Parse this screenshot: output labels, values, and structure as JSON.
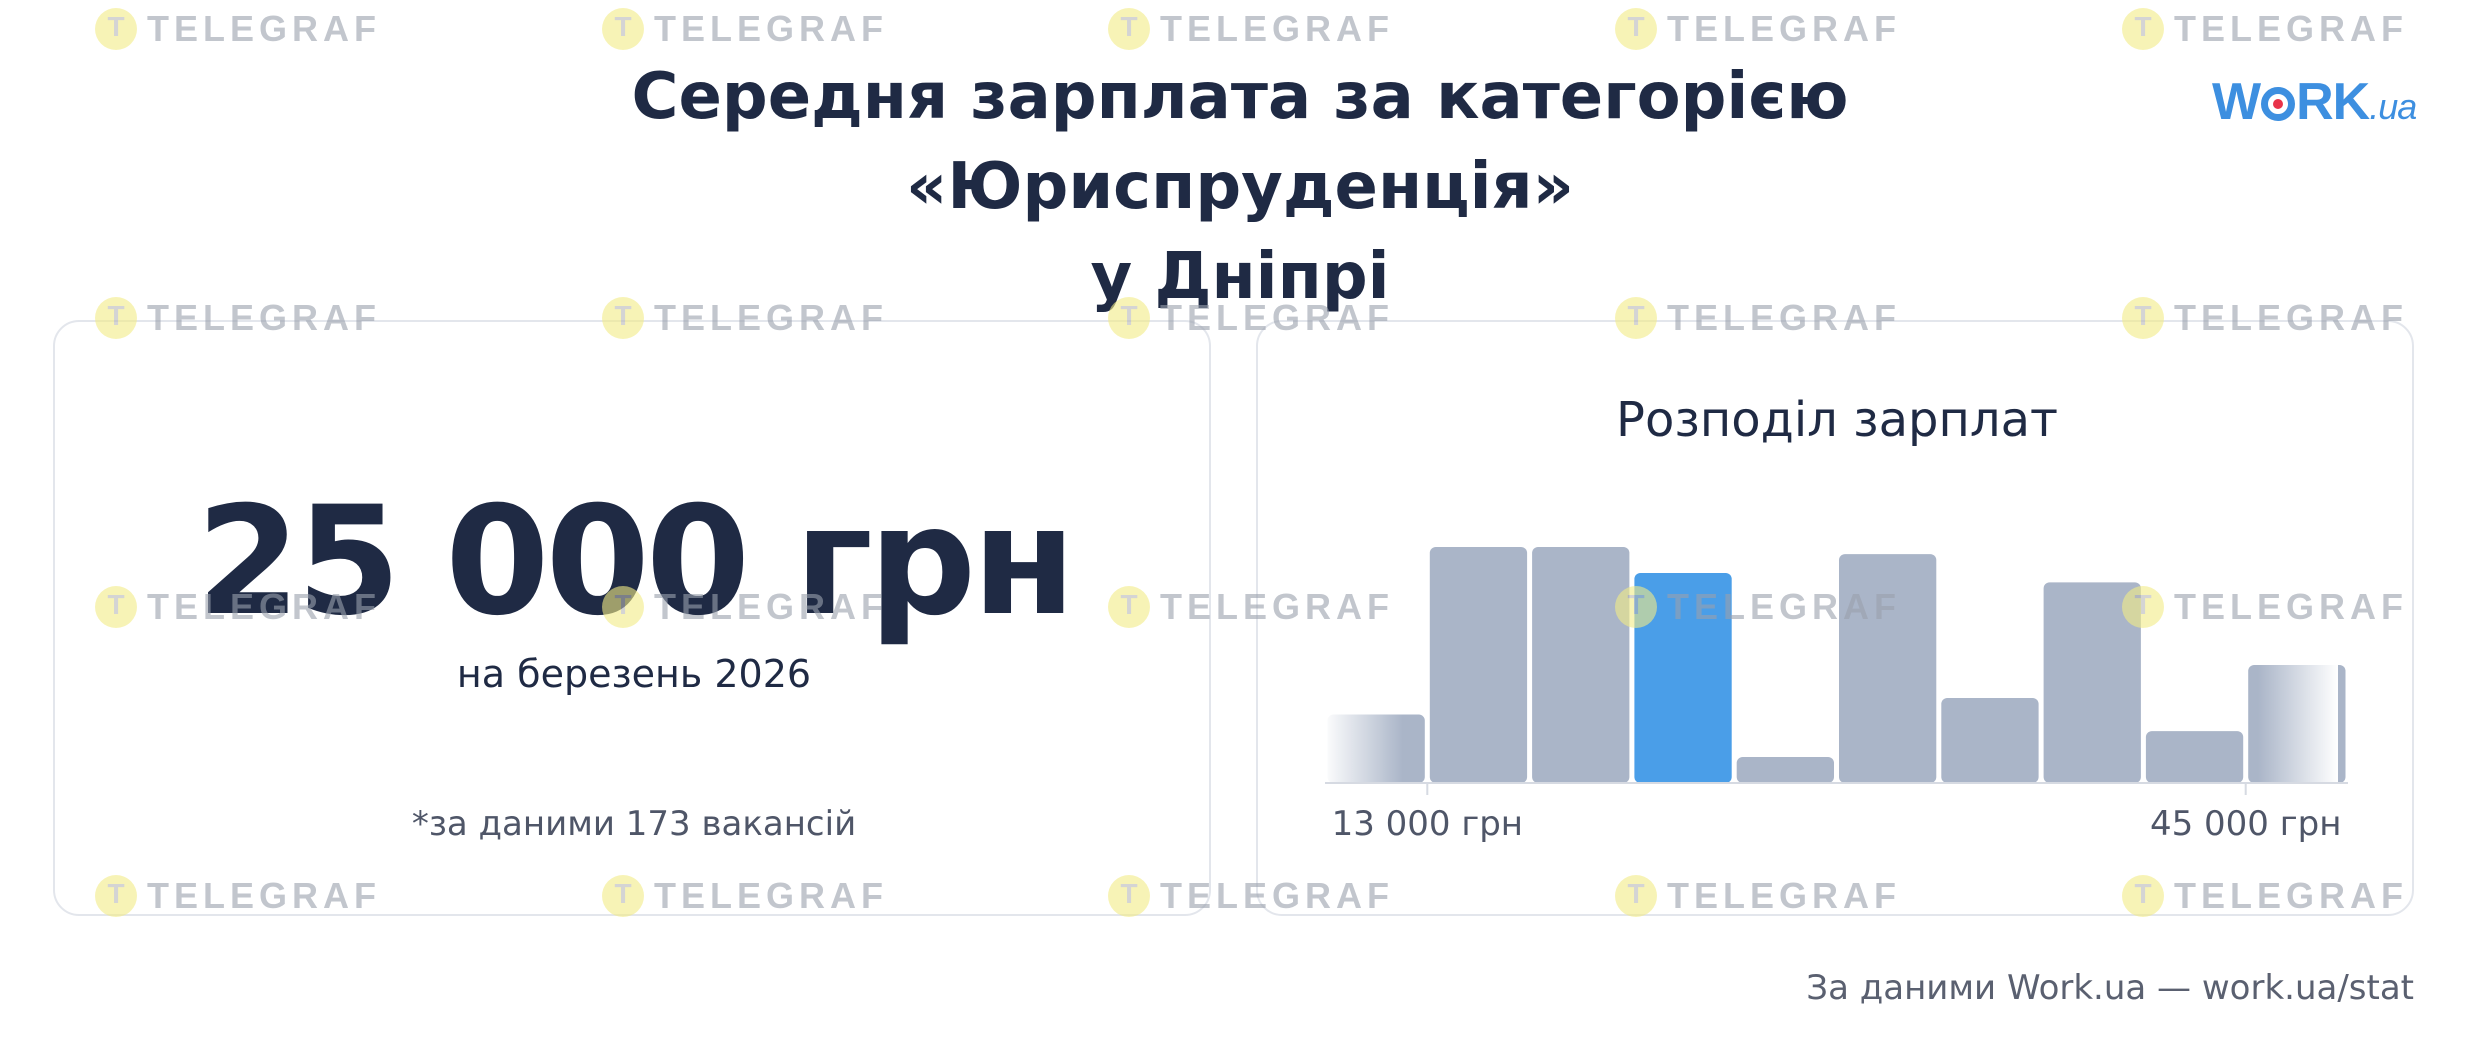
{
  "header": {
    "title_line1": "Середня зарплата за категорією «Юриспруденція»",
    "title_line2": "у Дніпрі",
    "logo": {
      "main_before": "W",
      "main_after": "RK",
      "suffix": ".ua",
      "brand_color": "#3d8fe0",
      "dot_color": "#e8334a"
    }
  },
  "summary": {
    "value": "25 000 грн",
    "period": "на березень 2026",
    "note": "*за даними 173 вакансій"
  },
  "chart_data": {
    "type": "bar",
    "title": "Розподіл зарплат",
    "xlabel": "",
    "ylabel": "",
    "grid": false,
    "legend": "none",
    "x_tick_labels": [
      {
        "label": "13 000 грн",
        "after_bin": 1
      },
      {
        "label": "45 000 грн",
        "after_bin": 9
      }
    ],
    "values": [
      0.29,
      1.0,
      1.0,
      0.89,
      0.11,
      0.97,
      0.36,
      0.85,
      0.22,
      0.5
    ],
    "highlight_index": 3,
    "fade_edges": true,
    "colors": {
      "bar": "#aab5c8",
      "highlight": "#4a9ee8",
      "axis": "#d6dae2",
      "label": "#4f5668"
    }
  },
  "footer": {
    "source": "За даними Work.ua — work.ua/stat"
  },
  "watermark": {
    "text": "TELEGRAF",
    "icon": "telegraf-logo-icon"
  }
}
